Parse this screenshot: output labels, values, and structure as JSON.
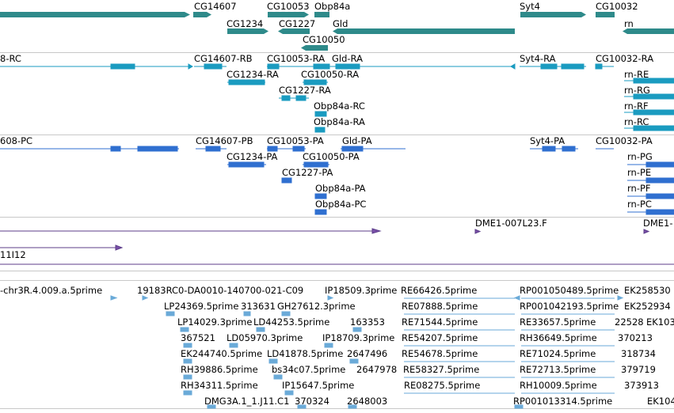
{
  "track_genes": {
    "color": "#2e8a8a",
    "labels": [
      "CG14607",
      "CG10053",
      "Obp84a",
      "Syt4",
      "CG10032",
      "CG1234",
      "CG1227",
      "Gld",
      "rn",
      "CG10050"
    ]
  },
  "track_transcripts": {
    "color": "#1a9bc0",
    "labels": [
      "8-RC",
      "CG14607-RB",
      "CG10053-RA",
      "Gld-RA",
      "Syt4-RA",
      "CG10032-RA",
      "CG1234-RA",
      "CG10050-RA",
      "rn-RE",
      "CG1227-RA",
      "rn-RG",
      "Obp84a-RC",
      "rn-RF",
      "Obp84a-RA",
      "rn-RC"
    ]
  },
  "track_proteins": {
    "color": "#2f6fd0",
    "labels": [
      "608-PC",
      "CG14607-PB",
      "CG10053-PA",
      "Gld-PA",
      "Syt4-PA",
      "CG10032-PA",
      "CG1234-PA",
      "CG10050-PA",
      "rn-PG",
      "CG1227-PA",
      "rn-PE",
      "Obp84a-PA",
      "rn-PF",
      "Obp84a-PC",
      "rn-PC"
    ]
  },
  "track_clones": {
    "color": "#7a4fa8",
    "labels": [
      "DME1-007L23.F",
      "DME1-",
      "11I12"
    ]
  },
  "track_ests": {
    "color": "#6aaad8",
    "labels": [
      "-chr3R.4.009.a.5prime",
      "19183RC0-DA0010-140700-021-C09",
      "IP18509.3prime",
      "RE66426.5prime",
      "RP001050489.5prime",
      "EK258530",
      "LP24369.5prime",
      "313631",
      "GH27612.3prime",
      "RE07888.5prime",
      "RP001042193.5prime",
      "EK252934",
      "LP14029.3prime",
      "LD44253.5prime",
      "163353",
      "RE71544.5prime",
      "RE33657.5prime",
      "22528",
      "EK103",
      "367521",
      "LD05970.3prime",
      "IP18709.3prime",
      "RE54207.5prime",
      "RH36649.5prime",
      "370213",
      "EK244740.5prime",
      "LD41878.5prime",
      "2647496",
      "RE54678.5prime",
      "RE71024.5prime",
      "318734",
      "RH39886.5prime",
      "bs34c07.5prime",
      "2647978",
      "RE58327.5prime",
      "RE72713.5prime",
      "379719",
      "RH34311.5prime",
      "IP15647.5prime",
      "RE08275.5prime",
      "RH10009.5prime",
      "373913",
      "DMG3A.1_1.J11.C1",
      "370324",
      "2648003",
      "RP001013314.5prime",
      "EK104"
    ]
  }
}
